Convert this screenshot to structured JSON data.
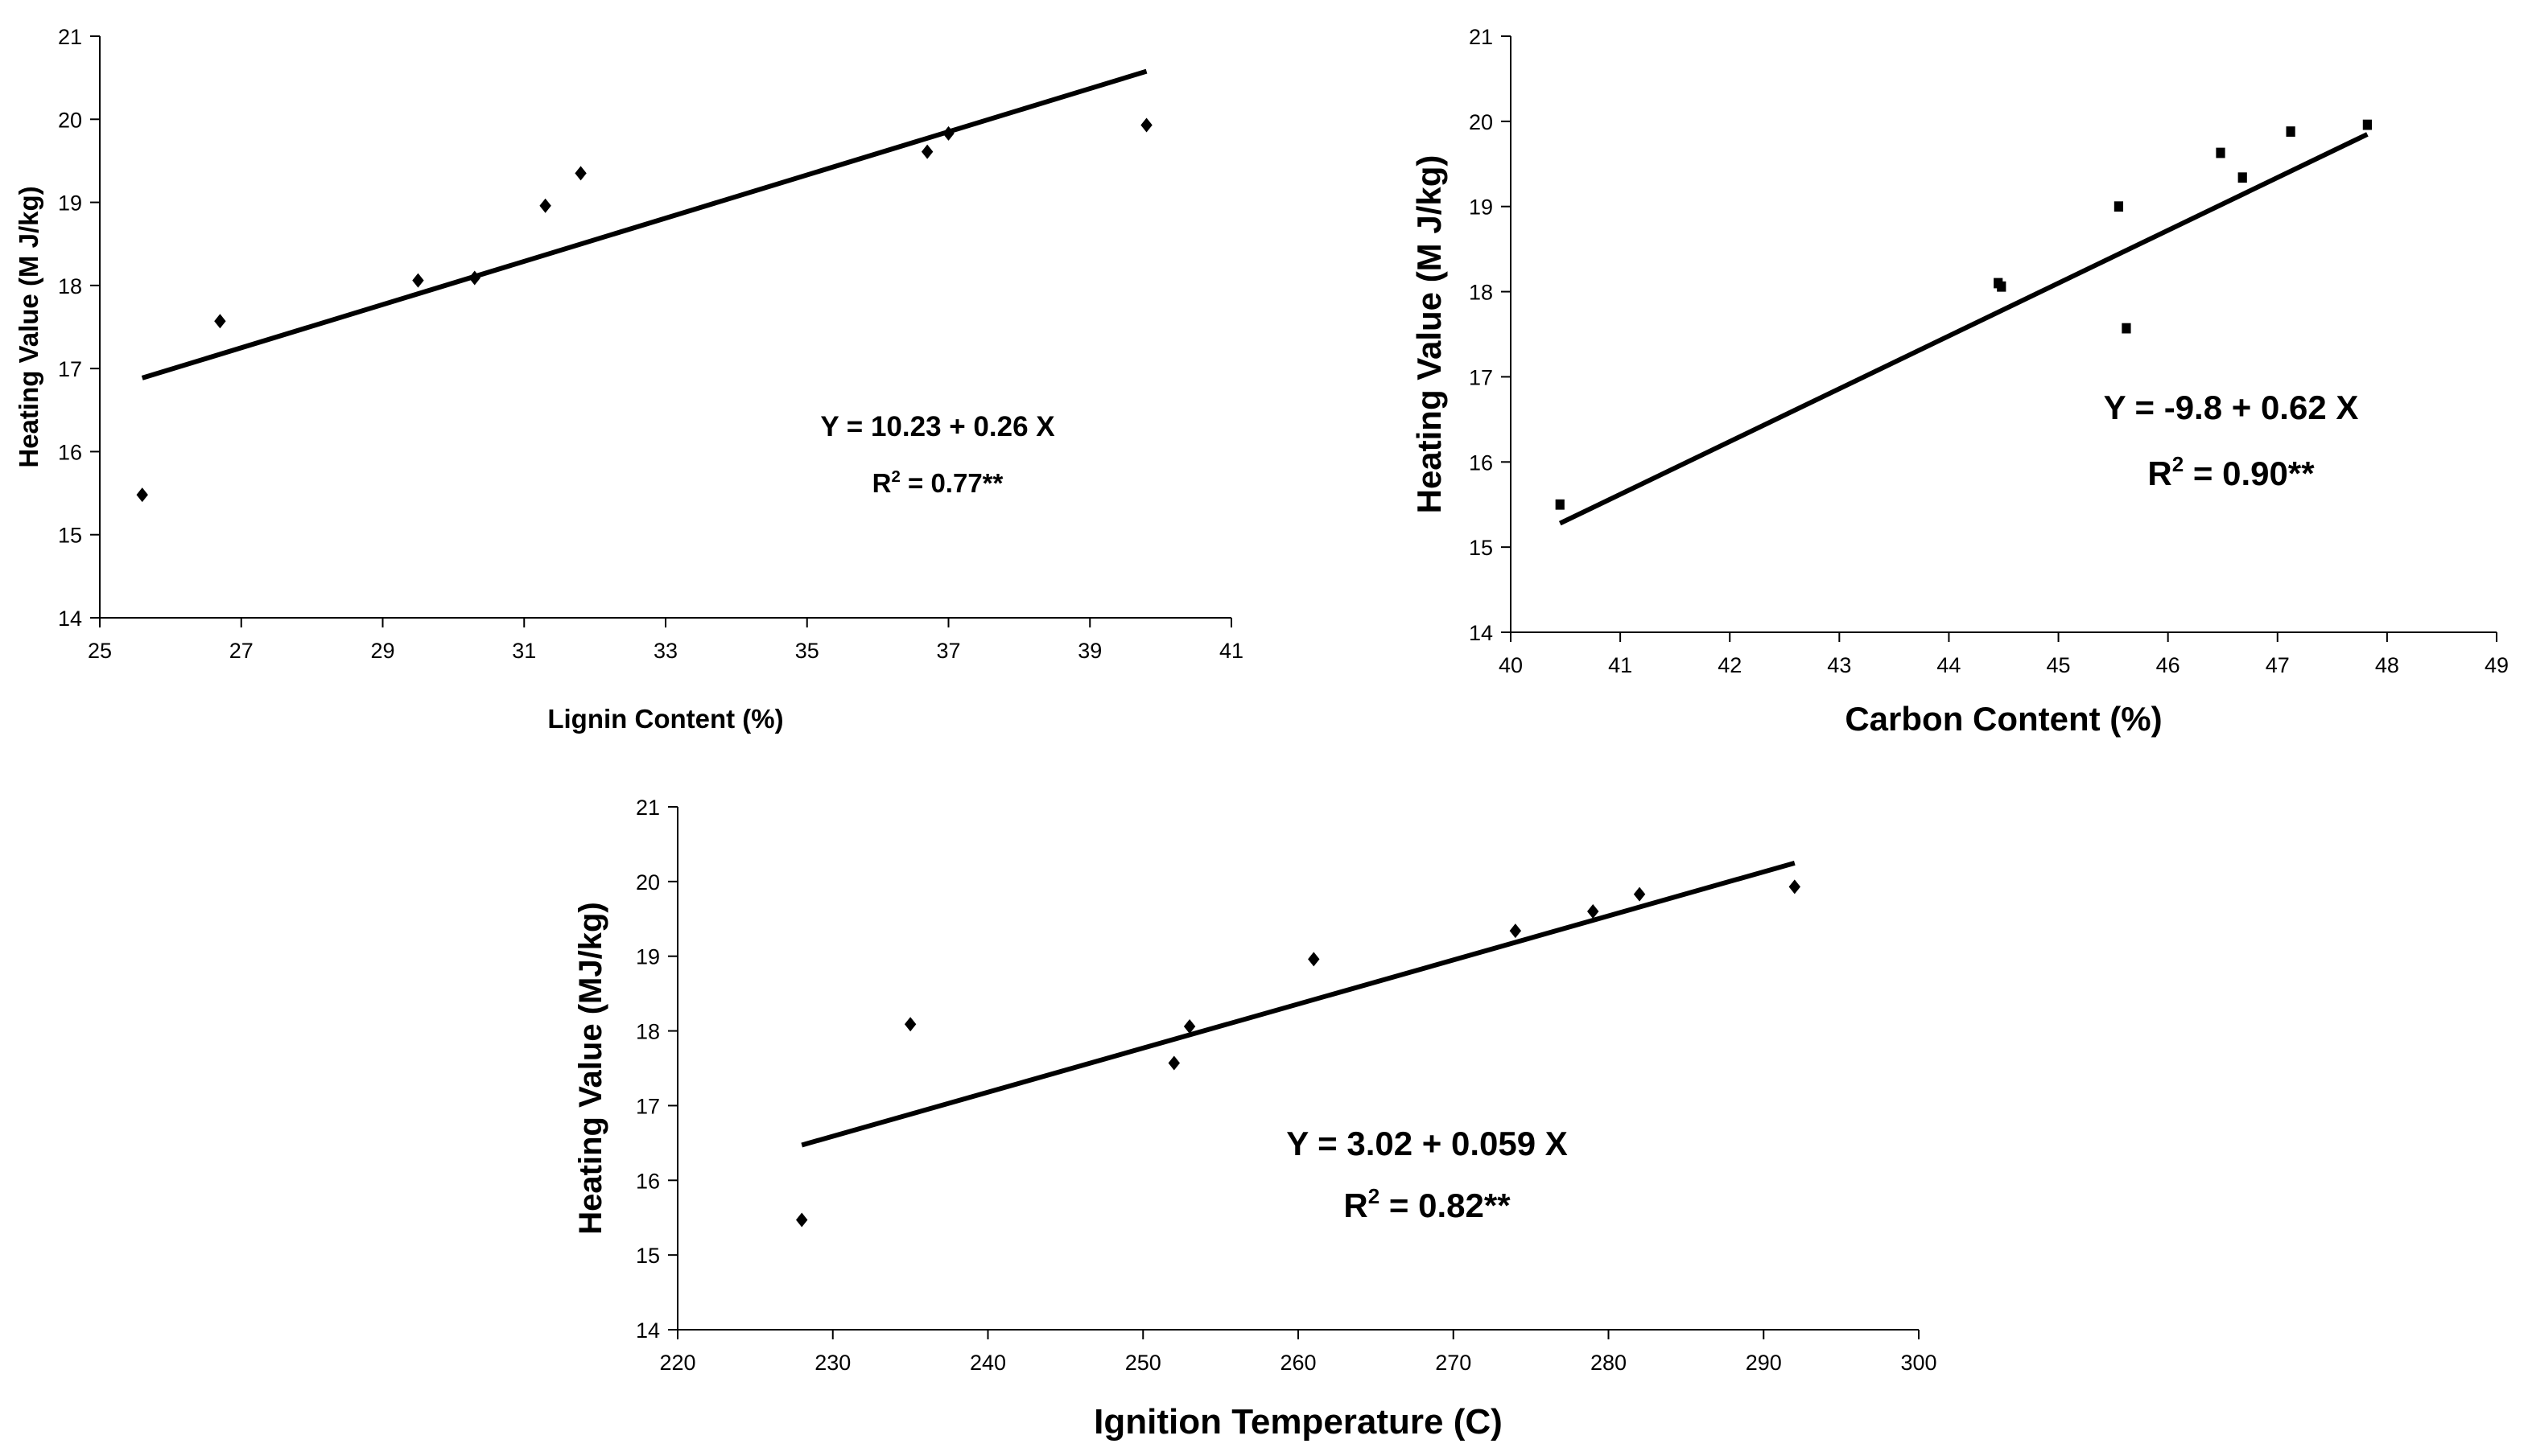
{
  "chart_data": [
    {
      "type": "scatter",
      "id": "lignin",
      "xlabel": "Lignin Content (%)",
      "ylabel": "Heating Value (M J/kg)",
      "xlim": [
        25,
        41
      ],
      "ylim": [
        14,
        21
      ],
      "xticks": [
        "25",
        "27",
        "29",
        "31",
        "33",
        "35",
        "37",
        "39",
        "41"
      ],
      "yticks": [
        "14",
        "15",
        "16",
        "17",
        "18",
        "19",
        "20",
        "21"
      ],
      "grid": false,
      "marker": "diamond",
      "points": [
        {
          "x": 25.6,
          "y": 15.48
        },
        {
          "x": 26.7,
          "y": 17.57
        },
        {
          "x": 29.5,
          "y": 18.06
        },
        {
          "x": 30.3,
          "y": 18.09
        },
        {
          "x": 31.3,
          "y": 18.96
        },
        {
          "x": 31.8,
          "y": 19.35
        },
        {
          "x": 36.7,
          "y": 19.61
        },
        {
          "x": 37.0,
          "y": 19.83
        },
        {
          "x": 39.8,
          "y": 19.93
        }
      ],
      "trend": {
        "x1": 25.6,
        "x2": 39.8,
        "intercept": 10.23,
        "slope": 0.26
      },
      "equation": "Y = 10.23 + 0.26 X",
      "r2": {
        "prefix": "R",
        "sup": "2",
        "suffix": " = 0.77**"
      }
    },
    {
      "type": "scatter",
      "id": "carbon",
      "xlabel": "Carbon Content (%)",
      "ylabel": "Heating Value (M J/kg)",
      "xlim": [
        40,
        49
      ],
      "ylim": [
        14,
        21
      ],
      "xticks": [
        "40",
        "41",
        "42",
        "43",
        "44",
        "45",
        "46",
        "47",
        "48",
        "49"
      ],
      "yticks": [
        "14",
        "15",
        "16",
        "17",
        "18",
        "19",
        "20",
        "21"
      ],
      "grid": false,
      "marker": "square",
      "points": [
        {
          "x": 40.45,
          "y": 15.5
        },
        {
          "x": 44.45,
          "y": 18.1
        },
        {
          "x": 44.48,
          "y": 18.06
        },
        {
          "x": 45.55,
          "y": 19.0
        },
        {
          "x": 45.62,
          "y": 17.57
        },
        {
          "x": 46.48,
          "y": 19.63
        },
        {
          "x": 46.68,
          "y": 19.34
        },
        {
          "x": 47.12,
          "y": 19.88
        },
        {
          "x": 47.82,
          "y": 19.96
        }
      ],
      "trend": {
        "x1": 40.45,
        "x2": 47.82,
        "intercept": -9.8,
        "slope": 0.62
      },
      "equation": "Y = -9.8 + 0.62 X",
      "r2": {
        "prefix": "R",
        "sup": "2",
        "suffix": " = 0.90**"
      }
    },
    {
      "type": "scatter",
      "id": "ignition",
      "xlabel": "Ignition Temperature (C)",
      "ylabel": "Heating Value (MJ/kg)",
      "xlim": [
        220,
        300
      ],
      "ylim": [
        14,
        21
      ],
      "xticks": [
        "220",
        "230",
        "240",
        "250",
        "260",
        "270",
        "280",
        "290",
        "300"
      ],
      "yticks": [
        "14",
        "15",
        "16",
        "17",
        "18",
        "19",
        "20",
        "21"
      ],
      "grid": false,
      "marker": "diamond",
      "points": [
        {
          "x": 228,
          "y": 15.47
        },
        {
          "x": 235,
          "y": 18.09
        },
        {
          "x": 252,
          "y": 17.57
        },
        {
          "x": 253,
          "y": 18.06
        },
        {
          "x": 261,
          "y": 18.96
        },
        {
          "x": 274,
          "y": 19.34
        },
        {
          "x": 279,
          "y": 19.6
        },
        {
          "x": 282,
          "y": 19.83
        },
        {
          "x": 292,
          "y": 19.93
        }
      ],
      "trend": {
        "x1": 228,
        "x2": 292,
        "intercept": 3.02,
        "slope": 0.059
      },
      "equation": "Y = 3.02 + 0.059 X",
      "r2": {
        "prefix": "R",
        "sup": "2",
        "suffix": " = 0.82**"
      }
    }
  ]
}
